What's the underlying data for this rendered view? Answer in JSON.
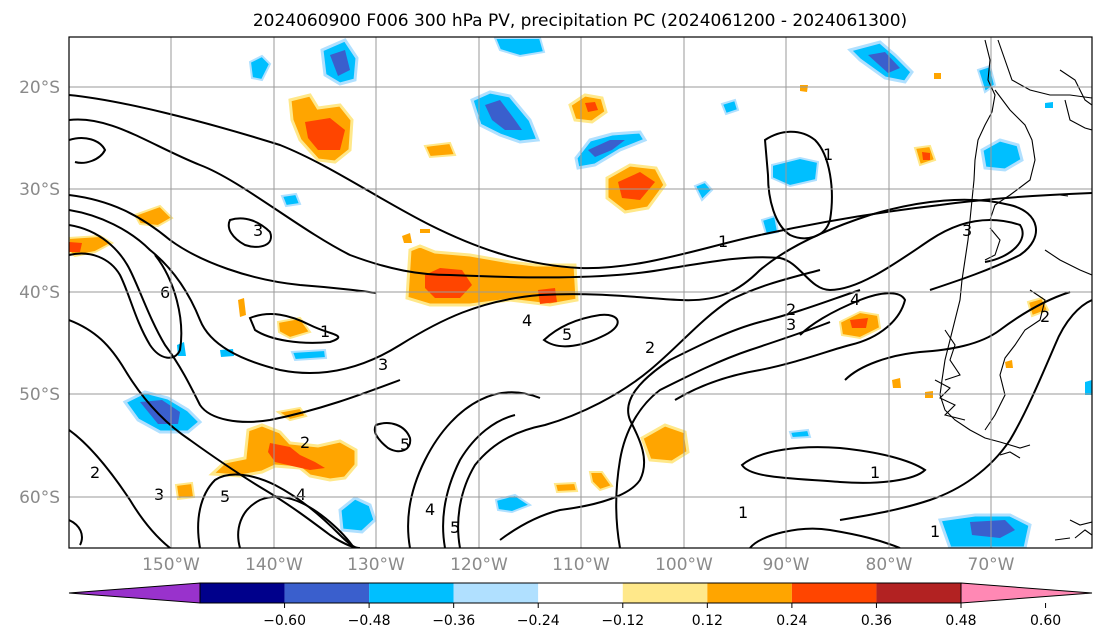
{
  "title": "2024060900 F006 300 hPa PV, precipitation PC (2024061200 - 2024061300)",
  "lat_labels": [
    "20°S",
    "30°S",
    "40°S",
    "50°S",
    "60°S"
  ],
  "lon_labels": [
    "150°W",
    "140°W",
    "130°W",
    "120°W",
    "110°W",
    "100°W",
    "90°W",
    "80°W",
    "70°W"
  ],
  "colorbar": {
    "colors": [
      "#9932cc",
      "#00008b",
      "#3a5fcd",
      "#00bfff",
      "#b0e0ff",
      "#ffffff",
      "#ffe88a",
      "#ffa500",
      "#ff4500",
      "#b22222",
      "#ff88b4"
    ],
    "tick_labels": [
      "−0.60",
      "−0.48",
      "−0.36",
      "−0.24",
      "−0.12",
      "0.12",
      "0.24",
      "0.36",
      "0.48",
      "0.60"
    ]
  },
  "contour_labels": [
    "1",
    "1",
    "1",
    "1",
    "1",
    "1",
    "2",
    "2",
    "2",
    "2",
    "2",
    "3",
    "3",
    "3",
    "3",
    "3",
    "4",
    "4",
    "4",
    "4",
    "5",
    "5",
    "5",
    "5",
    "6"
  ]
}
